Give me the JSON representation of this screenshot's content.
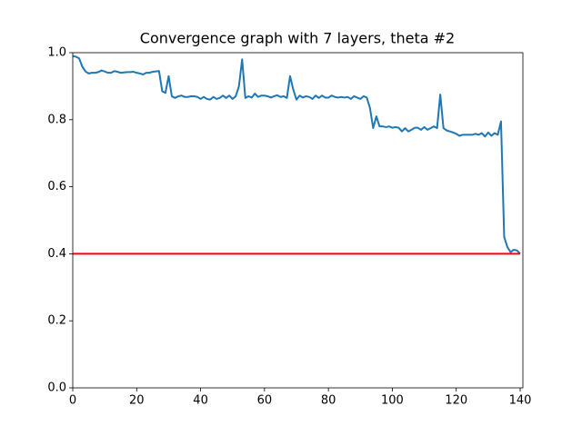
{
  "chart_data": {
    "type": "line",
    "title": "Convergence graph with 7 layers, theta #2",
    "xlim": [
      0,
      140.85
    ],
    "ylim": [
      0,
      1
    ],
    "xticks": [
      0,
      20,
      40,
      60,
      80,
      100,
      120,
      140
    ],
    "yticks": [
      {
        "value": 0,
        "label": "0.0"
      },
      0.2,
      0.4,
      0.6,
      0.8,
      {
        "value": 1,
        "label": "1.0"
      }
    ],
    "series": [
      {
        "color": "#1f77b4",
        "x": [
          0,
          1,
          2,
          3,
          4,
          5,
          6,
          7,
          8,
          9,
          10,
          11,
          12,
          13,
          14,
          15,
          16,
          17,
          18,
          19,
          20,
          21,
          22,
          23,
          24,
          25,
          26,
          27,
          28,
          29,
          30,
          31,
          32,
          33,
          34,
          35,
          36,
          37,
          38,
          39,
          40,
          41,
          42,
          43,
          44,
          45,
          46,
          47,
          48,
          49,
          50,
          51,
          52,
          53,
          54,
          55,
          56,
          57,
          58,
          59,
          60,
          61,
          62,
          63,
          64,
          65,
          66,
          67,
          68,
          69,
          70,
          71,
          72,
          73,
          74,
          75,
          76,
          77,
          78,
          79,
          80,
          81,
          82,
          83,
          84,
          85,
          86,
          87,
          88,
          89,
          90,
          91,
          92,
          93,
          94,
          95,
          96,
          97,
          98,
          99,
          100,
          101,
          102,
          103,
          104,
          105,
          106,
          107,
          108,
          109,
          110,
          111,
          112,
          113,
          114,
          115,
          116,
          117,
          118,
          119,
          120,
          121,
          122,
          123,
          124,
          125,
          126,
          127,
          128,
          129,
          130,
          131,
          132,
          133,
          134,
          135,
          136,
          137,
          138,
          139,
          140
        ],
        "values": [
          0.99,
          0.988,
          0.983,
          0.958,
          0.944,
          0.938,
          0.94,
          0.94,
          0.942,
          0.947,
          0.944,
          0.94,
          0.94,
          0.945,
          0.943,
          0.94,
          0.941,
          0.942,
          0.942,
          0.943,
          0.94,
          0.938,
          0.935,
          0.94,
          0.94,
          0.943,
          0.944,
          0.945,
          0.885,
          0.88,
          0.93,
          0.87,
          0.865,
          0.87,
          0.872,
          0.868,
          0.868,
          0.87,
          0.87,
          0.868,
          0.862,
          0.868,
          0.862,
          0.86,
          0.868,
          0.862,
          0.865,
          0.872,
          0.865,
          0.872,
          0.862,
          0.87,
          0.9,
          0.98,
          0.865,
          0.87,
          0.866,
          0.878,
          0.868,
          0.872,
          0.872,
          0.87,
          0.866,
          0.87,
          0.873,
          0.868,
          0.87,
          0.865,
          0.93,
          0.89,
          0.86,
          0.872,
          0.866,
          0.87,
          0.868,
          0.862,
          0.872,
          0.865,
          0.872,
          0.866,
          0.866,
          0.872,
          0.868,
          0.866,
          0.868,
          0.866,
          0.868,
          0.862,
          0.87,
          0.866,
          0.862,
          0.87,
          0.866,
          0.835,
          0.775,
          0.81,
          0.78,
          0.78,
          0.778,
          0.78,
          0.776,
          0.778,
          0.776,
          0.765,
          0.775,
          0.765,
          0.77,
          0.776,
          0.776,
          0.77,
          0.778,
          0.77,
          0.775,
          0.78,
          0.775,
          0.875,
          0.775,
          0.768,
          0.765,
          0.762,
          0.758,
          0.752,
          0.755,
          0.755,
          0.755,
          0.755,
          0.758,
          0.755,
          0.76,
          0.75,
          0.762,
          0.752,
          0.76,
          0.755,
          0.795,
          0.45,
          0.42,
          0.405,
          0.412,
          0.41,
          0.4
        ]
      },
      {
        "color": "#ff0000",
        "x": [
          0,
          140
        ],
        "values": [
          0.4,
          0.4
        ]
      }
    ]
  }
}
